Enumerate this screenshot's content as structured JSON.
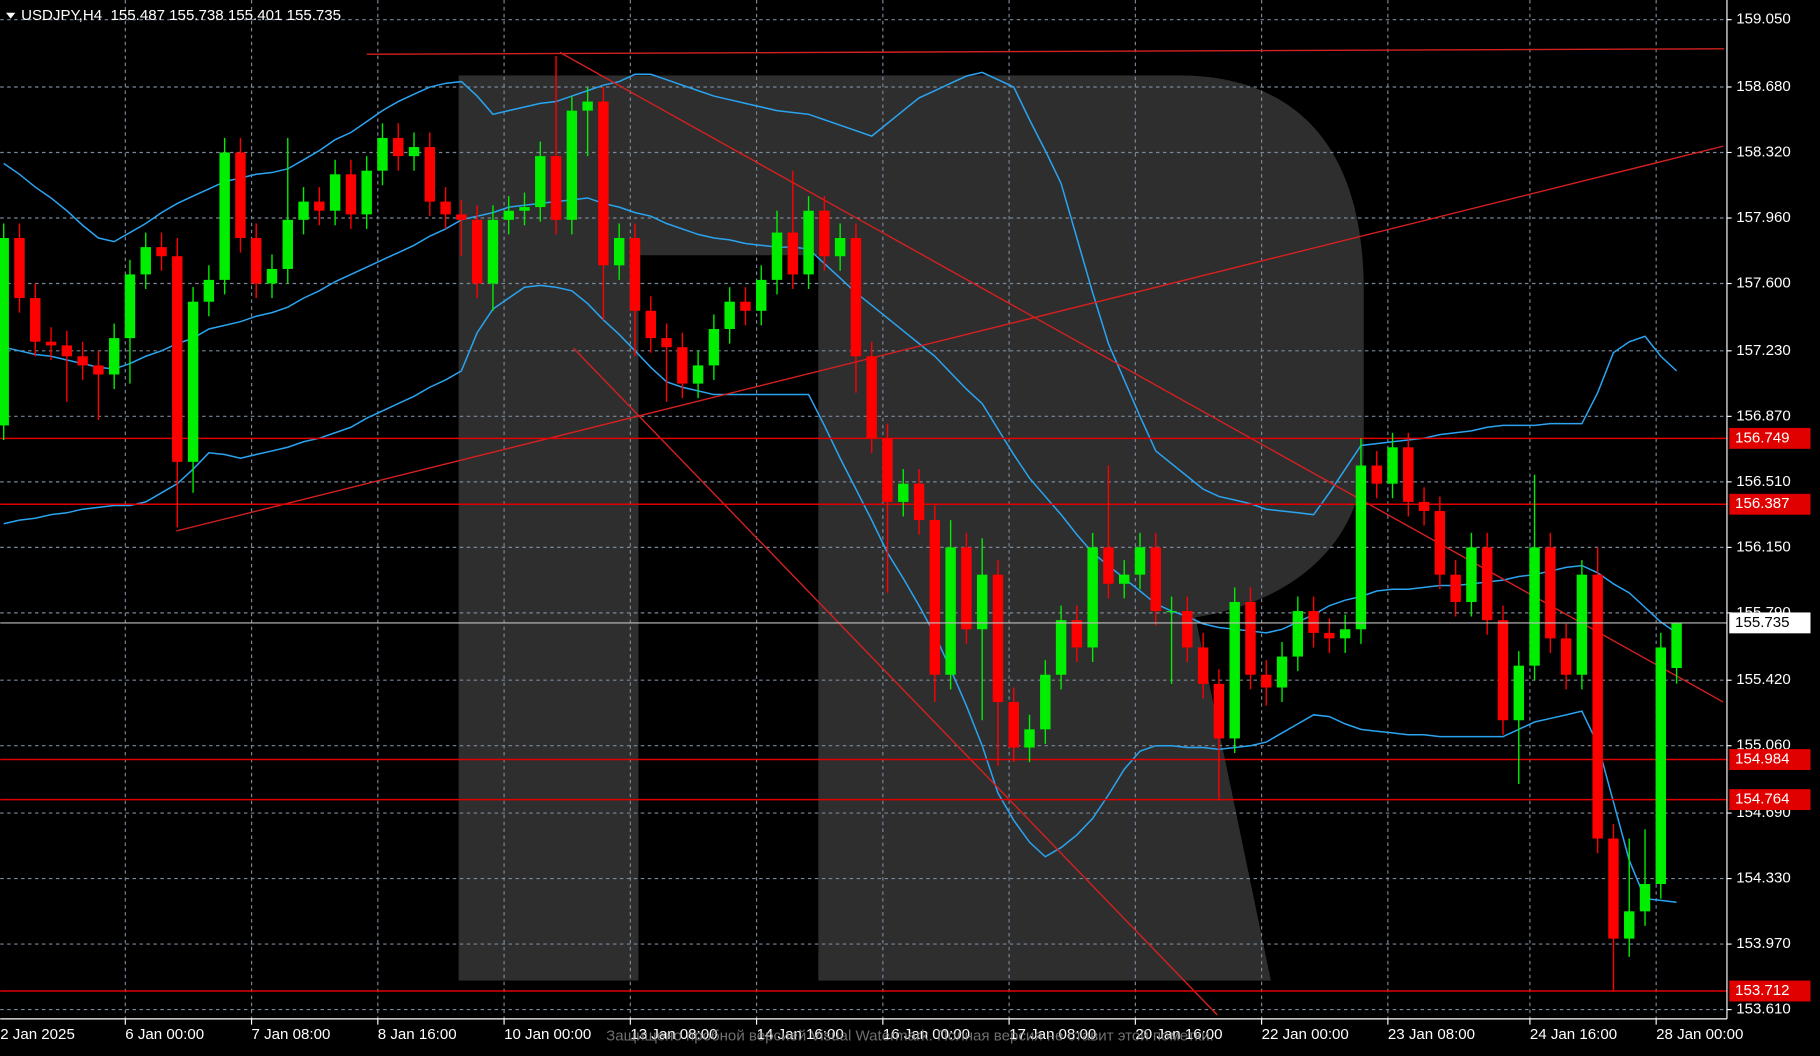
{
  "chart_data": {
    "type": "candlestick",
    "title": "USDJPY,H4  155.487 155.738 155.401 155.735",
    "watermark_text": "Защищено пробной версией Visual Watermark. Полная версия не ставит этой пометки.",
    "up_color": "#00ee00",
    "down_color": "#ff0000",
    "grid": true,
    "categories": [
      "2 Jan 2025",
      null,
      null,
      null,
      null,
      null,
      null,
      null,
      "6 Jan 00:00",
      null,
      null,
      null,
      null,
      null,
      null,
      null,
      "7 Jan 08:00",
      null,
      null,
      null,
      null,
      null,
      null,
      null,
      "8 Jan 16:00",
      null,
      null,
      null,
      null,
      null,
      null,
      null,
      "10 Jan 00:00",
      null,
      null,
      null,
      null,
      null,
      null,
      null,
      "13 Jan 08:00",
      null,
      null,
      null,
      null,
      null,
      null,
      null,
      "14 Jan 16:00",
      null,
      null,
      null,
      null,
      null,
      null,
      null,
      "16 Jan 00:00",
      null,
      null,
      null,
      null,
      null,
      null,
      null,
      "17 Jan 08:00",
      null,
      null,
      null,
      null,
      null,
      null,
      null,
      "20 Jan 16:00",
      null,
      null,
      null,
      null,
      null,
      null,
      null,
      "22 Jan 00:00",
      null,
      null,
      null,
      null,
      null,
      null,
      null,
      "23 Jan 08:00",
      null,
      null,
      null,
      null,
      null,
      null,
      null,
      null,
      "24 Jan 16:00",
      null,
      null,
      null,
      null,
      null,
      null,
      null,
      "28 Jan 00:00",
      null
    ],
    "open": [
      156.82,
      157.85,
      157.52,
      157.28,
      157.26,
      157.2,
      157.15,
      157.1,
      157.3,
      157.65,
      157.8,
      157.75,
      156.62,
      157.5,
      157.62,
      158.32,
      157.85,
      157.6,
      157.68,
      157.95,
      158.05,
      158.0,
      158.2,
      157.98,
      158.22,
      158.4,
      158.3,
      158.35,
      158.05,
      157.98,
      157.95,
      157.6,
      157.95,
      158.0,
      158.02,
      158.3,
      157.95,
      158.55,
      158.6,
      157.7,
      157.85,
      157.45,
      157.3,
      157.25,
      157.05,
      157.15,
      157.35,
      157.5,
      157.45,
      157.62,
      157.88,
      157.65,
      158.0,
      157.75,
      157.85,
      157.2,
      156.75,
      156.4,
      156.5,
      156.3,
      155.45,
      156.15,
      155.7,
      156.0,
      155.3,
      155.05,
      155.15,
      155.45,
      155.75,
      155.6,
      156.15,
      155.95,
      156.0,
      156.15,
      155.8,
      155.8,
      155.6,
      155.4,
      155.1,
      155.85,
      155.45,
      155.38,
      155.55,
      155.8,
      155.68,
      155.65,
      155.7,
      156.6,
      156.5,
      156.7,
      156.4,
      156.35,
      156.0,
      155.85,
      156.15,
      155.75,
      155.2,
      155.5,
      156.15,
      155.65,
      155.45,
      156.0,
      154.55,
      154.0,
      154.15,
      154.3,
      155.487
    ],
    "high": [
      157.93,
      157.93,
      157.6,
      157.36,
      157.34,
      157.28,
      157.23,
      157.38,
      157.73,
      157.88,
      157.88,
      157.85,
      157.58,
      157.7,
      158.4,
      158.4,
      157.93,
      157.76,
      158.4,
      158.13,
      158.13,
      158.28,
      158.28,
      158.3,
      158.48,
      158.48,
      158.43,
      158.43,
      158.13,
      158.06,
      158.03,
      158.03,
      158.08,
      158.1,
      158.38,
      158.85,
      158.63,
      158.68,
      158.68,
      157.93,
      157.93,
      157.53,
      157.38,
      157.33,
      157.23,
      157.43,
      157.58,
      157.58,
      157.7,
      158.0,
      158.22,
      158.08,
      158.08,
      157.93,
      157.93,
      157.28,
      156.83,
      156.58,
      156.58,
      156.38,
      156.3,
      156.23,
      156.2,
      156.08,
      155.38,
      155.23,
      155.53,
      155.83,
      155.83,
      156.23,
      156.6,
      156.08,
      156.23,
      156.23,
      155.88,
      155.88,
      155.68,
      155.48,
      155.93,
      155.93,
      155.53,
      155.63,
      155.88,
      155.88,
      155.76,
      155.78,
      156.75,
      156.68,
      156.78,
      156.78,
      156.48,
      156.43,
      156.08,
      156.23,
      156.23,
      155.83,
      155.58,
      156.55,
      156.23,
      155.73,
      156.08,
      156.15,
      154.63,
      154.55,
      154.6,
      155.68,
      155.738
    ],
    "low": [
      156.74,
      157.44,
      157.2,
      157.18,
      156.95,
      157.07,
      156.85,
      157.02,
      157.05,
      157.57,
      157.67,
      156.26,
      156.45,
      157.42,
      157.54,
      157.77,
      157.52,
      157.52,
      157.6,
      157.87,
      157.92,
      157.92,
      157.9,
      157.9,
      158.14,
      158.22,
      158.22,
      157.97,
      157.9,
      157.75,
      157.52,
      157.45,
      157.87,
      157.92,
      157.94,
      157.87,
      157.87,
      158.3,
      157.4,
      157.62,
      157.2,
      157.22,
      156.95,
      156.97,
      156.97,
      157.07,
      157.27,
      157.37,
      157.37,
      157.54,
      157.57,
      157.57,
      157.67,
      157.67,
      157.0,
      156.67,
      155.9,
      156.32,
      156.22,
      155.3,
      155.37,
      155.62,
      155.2,
      154.95,
      154.97,
      154.97,
      155.07,
      155.37,
      155.52,
      155.52,
      155.87,
      155.87,
      155.92,
      155.72,
      155.4,
      155.52,
      155.32,
      154.76,
      155.02,
      155.37,
      155.28,
      155.3,
      155.47,
      155.6,
      155.57,
      155.57,
      155.62,
      156.42,
      156.42,
      156.32,
      156.27,
      155.92,
      155.77,
      155.77,
      155.67,
      155.12,
      154.85,
      155.42,
      155.57,
      155.37,
      155.37,
      154.47,
      153.712,
      153.9,
      154.07,
      154.22,
      155.401
    ],
    "close": [
      157.85,
      157.52,
      157.28,
      157.26,
      157.2,
      157.15,
      157.1,
      157.3,
      157.65,
      157.8,
      157.75,
      156.62,
      157.5,
      157.62,
      158.32,
      157.85,
      157.6,
      157.68,
      157.95,
      158.05,
      158.0,
      158.2,
      157.98,
      158.22,
      158.4,
      158.3,
      158.35,
      158.05,
      157.98,
      157.95,
      157.6,
      157.95,
      158.0,
      158.02,
      158.3,
      157.95,
      158.55,
      158.6,
      157.7,
      157.85,
      157.45,
      157.3,
      157.25,
      157.05,
      157.15,
      157.35,
      157.5,
      157.45,
      157.62,
      157.88,
      157.65,
      158.0,
      157.75,
      157.85,
      157.2,
      156.75,
      156.4,
      156.5,
      156.3,
      155.45,
      156.15,
      155.7,
      156.0,
      155.3,
      155.05,
      155.15,
      155.45,
      155.75,
      155.6,
      156.15,
      155.95,
      156.0,
      156.15,
      155.8,
      155.8,
      155.6,
      155.4,
      155.1,
      155.85,
      155.45,
      155.38,
      155.55,
      155.8,
      155.68,
      155.65,
      155.7,
      156.6,
      156.5,
      156.7,
      156.4,
      156.35,
      156.0,
      155.85,
      156.15,
      155.75,
      155.2,
      155.5,
      156.15,
      155.65,
      155.45,
      156.0,
      154.55,
      154.0,
      154.15,
      154.3,
      155.6,
      155.735
    ],
    "bands": {
      "color": "#2aa4f0",
      "upper": [
        158.26,
        158.2,
        158.13,
        158.07,
        158.0,
        157.92,
        157.85,
        157.83,
        157.88,
        157.93,
        157.99,
        158.04,
        158.08,
        158.12,
        158.16,
        158.18,
        158.2,
        158.21,
        158.23,
        158.28,
        158.33,
        158.39,
        158.43,
        158.49,
        158.55,
        158.6,
        158.64,
        158.68,
        158.7,
        158.71,
        158.63,
        158.53,
        158.55,
        158.57,
        158.59,
        158.6,
        158.63,
        158.66,
        158.69,
        158.71,
        158.75,
        158.75,
        158.72,
        158.69,
        158.66,
        158.63,
        158.61,
        158.59,
        158.57,
        158.55,
        158.54,
        158.53,
        158.5,
        158.47,
        158.44,
        158.41,
        158.48,
        158.55,
        158.62,
        158.66,
        158.7,
        158.74,
        158.76,
        158.72,
        158.68,
        158.5,
        158.33,
        158.15,
        157.85,
        157.55,
        157.27,
        157.07,
        156.87,
        156.68,
        156.61,
        156.54,
        156.47,
        156.43,
        156.41,
        156.39,
        156.36,
        156.35,
        156.34,
        156.33,
        156.45,
        156.58,
        156.71,
        156.72,
        156.73,
        156.74,
        156.75,
        156.77,
        156.78,
        156.79,
        156.81,
        156.82,
        156.82,
        156.82,
        156.83,
        156.83,
        156.83,
        157.0,
        157.22,
        157.28,
        157.31,
        157.2,
        157.12
      ],
      "middle": [
        157.25,
        157.23,
        157.21,
        157.2,
        157.18,
        157.16,
        157.14,
        157.13,
        157.16,
        157.2,
        157.23,
        157.27,
        157.3,
        157.35,
        157.37,
        157.39,
        157.42,
        157.44,
        157.47,
        157.52,
        157.56,
        157.61,
        157.65,
        157.69,
        157.73,
        157.77,
        157.81,
        157.86,
        157.9,
        157.95,
        157.97,
        157.99,
        158.02,
        158.03,
        158.04,
        158.05,
        158.06,
        158.07,
        158.04,
        158.02,
        157.99,
        157.97,
        157.93,
        157.9,
        157.87,
        157.85,
        157.84,
        157.82,
        157.81,
        157.8,
        157.8,
        157.79,
        157.71,
        157.63,
        157.55,
        157.48,
        157.41,
        157.34,
        157.27,
        157.2,
        157.11,
        157.02,
        156.94,
        156.8,
        156.66,
        156.53,
        156.43,
        156.33,
        156.22,
        156.12,
        156.05,
        155.98,
        155.91,
        155.84,
        155.8,
        155.77,
        155.73,
        155.71,
        155.7,
        155.69,
        155.68,
        155.7,
        155.74,
        155.78,
        155.83,
        155.86,
        155.88,
        155.91,
        155.92,
        155.92,
        155.93,
        155.94,
        155.94,
        155.95,
        155.96,
        155.97,
        155.99,
        156.0,
        156.02,
        156.04,
        156.05,
        156.01,
        155.95,
        155.9,
        155.82,
        155.74,
        155.68
      ],
      "lower": [
        156.28,
        156.3,
        156.31,
        156.33,
        156.34,
        156.36,
        156.37,
        156.38,
        156.38,
        156.4,
        156.45,
        156.5,
        156.58,
        156.67,
        156.66,
        156.64,
        156.66,
        156.68,
        156.7,
        156.73,
        156.75,
        156.78,
        156.81,
        156.86,
        156.9,
        156.94,
        156.98,
        157.03,
        157.07,
        157.12,
        157.33,
        157.46,
        157.52,
        157.58,
        157.59,
        157.58,
        157.56,
        157.49,
        157.4,
        157.32,
        157.23,
        157.14,
        157.06,
        157.03,
        157.01,
        156.99,
        156.99,
        156.99,
        156.99,
        156.99,
        156.99,
        156.99,
        156.82,
        156.64,
        156.47,
        156.3,
        156.12,
        155.98,
        155.83,
        155.67,
        155.48,
        155.28,
        155.06,
        154.8,
        154.65,
        154.53,
        154.45,
        154.5,
        154.57,
        154.66,
        154.79,
        154.93,
        155.03,
        155.06,
        155.06,
        155.05,
        155.05,
        155.04,
        155.05,
        155.06,
        155.08,
        155.13,
        155.18,
        155.23,
        155.22,
        155.18,
        155.15,
        155.14,
        155.13,
        155.12,
        155.12,
        155.11,
        155.11,
        155.11,
        155.11,
        155.11,
        155.15,
        155.19,
        155.21,
        155.23,
        155.25,
        155.07,
        154.75,
        154.43,
        154.22,
        154.21,
        154.2
      ]
    },
    "trendline_color": "#d42020",
    "trendlines": [
      {
        "x": [
          23,
          109
        ],
        "y": [
          158.86,
          158.89
        ]
      },
      {
        "x": [
          10.94,
          108.96
        ],
        "y": [
          156.24,
          158.355
        ]
      },
      {
        "x": [
          35.24,
          108.96
        ],
        "y": [
          158.87,
          155.3
        ]
      },
      {
        "x": [
          36.1,
          76.9
        ],
        "y": [
          157.245,
          153.58
        ]
      }
    ],
    "level_color": "#e00000",
    "levels": [
      156.749,
      156.387,
      154.984,
      154.764,
      153.712
    ],
    "last_price": 155.735,
    "ylim": [
      153.559,
      159.158
    ],
    "yticks": [
      {
        "value": 159.05,
        "label": "159.050"
      },
      {
        "value": 158.68,
        "label": "158.680"
      },
      {
        "value": 158.32,
        "label": "158.320"
      },
      {
        "value": 157.96,
        "label": "157.960"
      },
      {
        "value": 157.6,
        "label": "157.600"
      },
      {
        "value": 157.23,
        "label": "157.230"
      },
      {
        "value": 156.87,
        "label": "156.870"
      },
      {
        "value": 156.51,
        "label": "156.510"
      },
      {
        "value": 156.15,
        "label": "156.150"
      },
      {
        "value": 155.79,
        "label": "155.790"
      },
      {
        "value": 155.42,
        "label": "155.420"
      },
      {
        "value": 155.06,
        "label": "155.060"
      },
      {
        "value": 154.69,
        "label": "154.690"
      },
      {
        "value": 154.33,
        "label": "154.330"
      },
      {
        "value": 153.97,
        "label": "153.970"
      },
      {
        "value": 153.61,
        "label": "153.610"
      }
    ]
  }
}
